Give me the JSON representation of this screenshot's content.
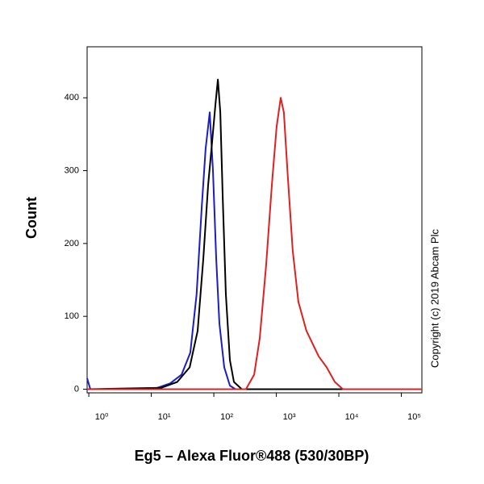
{
  "chart_data": {
    "type": "line",
    "x_label": "Eg5 – Alexa Fluor®488 (530/30BP)",
    "y_label": "Count",
    "annotation": "Copyright (c) 2019 Abcam Plc",
    "xscale": "log",
    "xlim": [
      0.94,
      213000
    ],
    "ylim": [
      -5,
      470
    ],
    "xticks": [
      {
        "value": 1,
        "label": "10⁰"
      },
      {
        "value": 10,
        "label": "10¹"
      },
      {
        "value": 100,
        "label": "10²"
      },
      {
        "value": 1000,
        "label": "10³"
      },
      {
        "value": 10000,
        "label": "10⁴"
      },
      {
        "value": 100000,
        "label": "10⁵"
      }
    ],
    "yticks": [
      0,
      100,
      200,
      300,
      400
    ],
    "series": [
      {
        "color": "#1c1cc4",
        "x": [
          0.94,
          1.06,
          10.8,
          20,
          30.5,
          42,
          53,
          64,
          74,
          86,
          97,
          109,
          123,
          147,
          181,
          222,
          213000
        ],
        "values": [
          15,
          0,
          0,
          8,
          20,
          50,
          130,
          250,
          330,
          380,
          300,
          180,
          90,
          30,
          5,
          0,
          0
        ]
      },
      {
        "color": "#000000",
        "x": [
          0.94,
          14.5,
          26,
          41,
          55,
          68,
          81,
          94,
          106,
          116,
          127,
          139,
          156,
          181,
          210,
          281,
          213000
        ],
        "values": [
          0,
          2,
          10,
          30,
          80,
          180,
          280,
          340,
          390,
          425,
          380,
          260,
          130,
          40,
          10,
          0,
          0
        ]
      },
      {
        "color": "#e02020",
        "x": [
          0.94,
          327,
          442,
          543,
          687,
          848,
          1010,
          1175,
          1320,
          1530,
          1830,
          2250,
          3030,
          4760,
          6400,
          8620,
          11600,
          213000
        ],
        "values": [
          0,
          0,
          20,
          70,
          170,
          280,
          360,
          400,
          380,
          290,
          190,
          120,
          80,
          45,
          30,
          10,
          0,
          0
        ]
      }
    ]
  }
}
